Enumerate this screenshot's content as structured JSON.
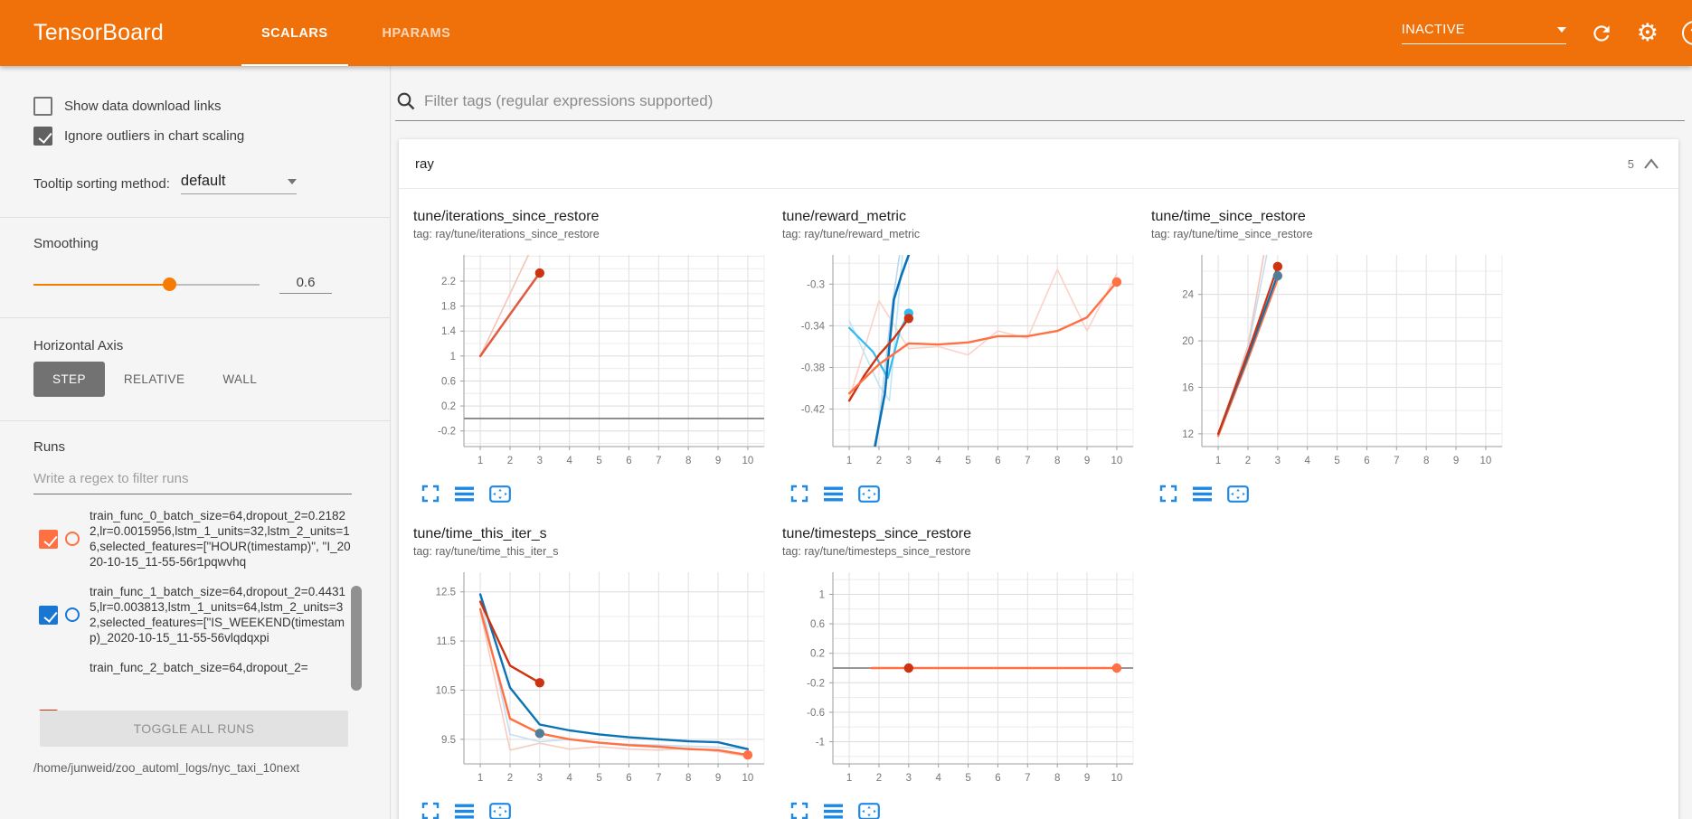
{
  "header": {
    "title": "TensorBoard",
    "tabs": [
      {
        "label": "SCALARS",
        "active": true
      },
      {
        "label": "HPARAMS",
        "active": false
      }
    ],
    "status": "INACTIVE",
    "help_label": "?"
  },
  "sidebar": {
    "checkboxes": [
      {
        "label": "Show data download links",
        "checked": false,
        "color": "#616161"
      },
      {
        "label": "Ignore outliers in chart scaling",
        "checked": true,
        "color": "#616161"
      }
    ],
    "tooltip_sorting": {
      "label": "Tooltip sorting method:",
      "value": "default"
    },
    "smoothing": {
      "label": "Smoothing",
      "value": "0.6",
      "percent": 60
    },
    "horizontal_axis": {
      "label": "Horizontal Axis",
      "options": [
        "STEP",
        "RELATIVE",
        "WALL"
      ],
      "selected": "STEP"
    },
    "runs": {
      "label": "Runs",
      "filter_placeholder": "Write a regex to filter runs",
      "items": [
        {
          "name": "train_func_0_batch_size=64,dropout_2=0.21822,lr=0.0015956,lstm_1_units=32,lstm_2_units=16,selected_features=[\"HOUR(timestamp)\", \"I_2020-10-15_11-55-56r1pqwvhq",
          "checked": true,
          "color": "#ff7043"
        },
        {
          "name": "train_func_1_batch_size=64,dropout_2=0.44315,lr=0.003813,lstm_1_units=64,lstm_2_units=32,selected_features=[\"IS_WEEKEND(timestamp)_2020-10-15_11-55-56vlqdqxpi",
          "checked": true,
          "color": "#1976d2"
        },
        {
          "name": "train_func_2_batch_size=64,dropout_2=",
          "checked": true,
          "color": "#cc3311"
        }
      ],
      "toggle_all_label": "TOGGLE ALL RUNS",
      "log_path": "/home/junweid/zoo_automl_logs/nyc_taxi_10next"
    }
  },
  "main": {
    "filter_placeholder": "Filter tags (regular expressions supported)",
    "section": {
      "name": "ray",
      "count": "5"
    }
  },
  "colors": {
    "header_bg": "#f0710a",
    "accent_orange": "#f57c00",
    "chart_icon_blue": "#1e88e5",
    "run_orange": "#ff7043",
    "run_blue": "#0b72b5",
    "run_red": "#cc3311",
    "run_cyan": "#33bbee"
  },
  "chart_data": [
    {
      "type": "line",
      "title": "tune/iterations_since_restore",
      "tag": "tag: ray/tune/iterations_since_restore",
      "xlabel": "step",
      "x_ticks": [
        1,
        2,
        3,
        4,
        5,
        6,
        7,
        8,
        9,
        10
      ],
      "y_ticks": [
        2.2,
        1.8,
        1.4,
        1,
        0.6,
        0.2,
        -0.2
      ],
      "x_range": [
        0.45,
        10.55
      ],
      "y_range": [
        -0.45,
        2.62
      ],
      "zero_line": true,
      "series": [
        {
          "name": "train_func_0 (raw)",
          "color": "#f6c3b5",
          "width": 1.6,
          "points": [
            [
              1,
              1
            ],
            [
              2,
              2
            ],
            [
              3,
              3
            ]
          ]
        },
        {
          "name": "train_func_0 (smoothed 0.6)",
          "color": "#e05b41",
          "width": 2.5,
          "points": [
            [
              1,
              1
            ],
            [
              2,
              1.67
            ],
            [
              3,
              2.33
            ]
          ]
        }
      ],
      "dots": [
        [
          3,
          2.33,
          "#cc3311"
        ]
      ]
    },
    {
      "type": "line",
      "title": "tune/reward_metric",
      "tag": "tag: ray/tune/reward_metric",
      "xlabel": "step",
      "x_ticks": [
        1,
        2,
        3,
        4,
        5,
        6,
        7,
        8,
        9,
        10
      ],
      "y_ticks": [
        -0.3,
        -0.34,
        -0.38,
        -0.42
      ],
      "x_range": [
        0.45,
        10.55
      ],
      "y_range": [
        -0.456,
        -0.272
      ],
      "zero_line": false,
      "series": [
        {
          "name": "train_func_0 (raw)",
          "color": "#fbd2c8",
          "width": 1.6,
          "points": [
            [
              1,
              -0.41
            ],
            [
              2,
              -0.316
            ],
            [
              3,
              -0.362
            ],
            [
              4,
              -0.36
            ],
            [
              5,
              -0.368
            ],
            [
              6,
              -0.345
            ],
            [
              7,
              -0.352
            ],
            [
              8,
              -0.286
            ],
            [
              9,
              -0.345
            ],
            [
              10,
              -0.29
            ]
          ]
        },
        {
          "name": "train_func_3 (raw)",
          "color": "#bfe6f5",
          "width": 1.6,
          "points": [
            [
              1,
              -0.335
            ],
            [
              2,
              -0.397
            ],
            [
              2.35,
              -0.412
            ],
            [
              2.8,
              -0.27
            ]
          ]
        },
        {
          "name": "train_func_1 (raw)",
          "color": "#b9d7ee",
          "width": 1.6,
          "points": [
            [
              1.9,
              -0.458
            ],
            [
              2.4,
              -0.33
            ],
            [
              2.7,
              -0.27
            ]
          ]
        },
        {
          "name": "train_func_3 (smoothed)",
          "color": "#33bbee",
          "width": 2.2,
          "points": [
            [
              1,
              -0.342
            ],
            [
              1.8,
              -0.365
            ],
            [
              2.3,
              -0.39
            ],
            [
              2.7,
              -0.345
            ],
            [
              3,
              -0.328
            ]
          ]
        },
        {
          "name": "train_func_1 (smoothed)",
          "color": "#0b72b5",
          "width": 2.6,
          "points": [
            [
              1.85,
              -0.458
            ],
            [
              2.2,
              -0.405
            ],
            [
              2.5,
              -0.315
            ],
            [
              2.75,
              -0.292
            ],
            [
              3.05,
              -0.268
            ]
          ]
        },
        {
          "name": "train_func_2 (smoothed)",
          "color": "#cc3311",
          "width": 2.4,
          "points": [
            [
              1,
              -0.412
            ],
            [
              1.5,
              -0.388
            ],
            [
              2,
              -0.368
            ],
            [
              2.5,
              -0.352
            ],
            [
              3,
              -0.333
            ]
          ]
        },
        {
          "name": "train_func_0 (smoothed)",
          "color": "#ff7043",
          "width": 2.4,
          "points": [
            [
              1,
              -0.405
            ],
            [
              2,
              -0.377
            ],
            [
              3,
              -0.357
            ],
            [
              4,
              -0.358
            ],
            [
              5,
              -0.356
            ],
            [
              6,
              -0.35
            ],
            [
              7,
              -0.35
            ],
            [
              8,
              -0.345
            ],
            [
              9,
              -0.332
            ],
            [
              10,
              -0.298
            ]
          ]
        }
      ],
      "dots": [
        [
          3,
          -0.328,
          "#33bbee"
        ],
        [
          3,
          -0.333,
          "#cc3311"
        ],
        [
          10,
          -0.298,
          "#ff7043"
        ]
      ]
    },
    {
      "type": "line",
      "title": "tune/time_since_restore",
      "tag": "tag: ray/tune/time_since_restore",
      "xlabel": "step",
      "x_ticks": [
        1,
        2,
        3,
        4,
        5,
        6,
        7,
        8,
        9,
        10
      ],
      "y_ticks": [
        24,
        20,
        16,
        12
      ],
      "x_range": [
        0.45,
        10.55
      ],
      "y_range": [
        10.9,
        27.4
      ],
      "zero_line": false,
      "series": [
        {
          "name": "train_func_0 (raw)",
          "color": "#f6c3b5",
          "width": 1.6,
          "points": [
            [
              1,
              11.8
            ],
            [
              2,
              19.6
            ],
            [
              2.55,
              27.6
            ]
          ]
        },
        {
          "name": "train_func_1 (raw)",
          "color": "#c3def2",
          "width": 1.6,
          "points": [
            [
              1,
              12
            ],
            [
              2,
              19.3
            ],
            [
              2.65,
              27.6
            ]
          ]
        },
        {
          "name": "train_func_0 (smoothed)",
          "color": "#ff7043",
          "width": 2.2,
          "points": [
            [
              1,
              11.8
            ],
            [
              2,
              18.4
            ],
            [
              3,
              25.3
            ]
          ]
        },
        {
          "name": "train_func_1 (smoothed)",
          "color": "#0b72b5",
          "width": 2.2,
          "points": [
            [
              1,
              12
            ],
            [
              2,
              18.7
            ],
            [
              3,
              25.7
            ]
          ]
        },
        {
          "name": "train_func_2 (smoothed)",
          "color": "#cc3311",
          "width": 2.2,
          "points": [
            [
              1,
              12
            ],
            [
              2,
              19
            ],
            [
              3,
              26.4
            ]
          ]
        }
      ],
      "dots": [
        [
          3,
          26.4,
          "#cc3311"
        ],
        [
          3,
          25.6,
          "#527d96"
        ]
      ]
    },
    {
      "type": "line",
      "title": "tune/time_this_iter_s",
      "tag": "tag: ray/tune/time_this_iter_s",
      "xlabel": "step",
      "x_ticks": [
        1,
        2,
        3,
        4,
        5,
        6,
        7,
        8,
        9,
        10
      ],
      "y_ticks": [
        12.5,
        11.5,
        10.5,
        9.5
      ],
      "x_range": [
        0.45,
        10.55
      ],
      "y_range": [
        9.0,
        12.9
      ],
      "zero_line": false,
      "series": [
        {
          "name": "train_func_0 (raw)",
          "color": "#f8cdc1",
          "width": 1.6,
          "points": [
            [
              1,
              12.1
            ],
            [
              2,
              9.28
            ],
            [
              3,
              9.42
            ],
            [
              4,
              9.3
            ],
            [
              5,
              9.35
            ],
            [
              6,
              9.3
            ],
            [
              7,
              9.28
            ],
            [
              8,
              9.32
            ],
            [
              9,
              9.25
            ],
            [
              10,
              9.15
            ]
          ]
        },
        {
          "name": "train_func_1 (raw)",
          "color": "#c3def2",
          "width": 1.6,
          "points": [
            [
              1,
              12.4
            ],
            [
              2,
              9.6
            ],
            [
              3,
              9.45
            ],
            [
              4,
              9.5
            ],
            [
              5,
              9.42
            ],
            [
              6,
              9.4
            ],
            [
              7,
              9.38
            ],
            [
              8,
              9.36
            ],
            [
              9,
              9.34
            ],
            [
              10,
              9.3
            ]
          ]
        },
        {
          "name": "train_func_1 (smoothed)",
          "color": "#0b72b5",
          "width": 2.4,
          "points": [
            [
              1,
              12.45
            ],
            [
              2,
              10.55
            ],
            [
              3,
              9.8
            ],
            [
              4,
              9.68
            ],
            [
              5,
              9.6
            ],
            [
              6,
              9.54
            ],
            [
              7,
              9.5
            ],
            [
              8,
              9.46
            ],
            [
              9,
              9.44
            ],
            [
              10,
              9.3
            ]
          ]
        },
        {
          "name": "train_func_0 (smoothed)",
          "color": "#ff7043",
          "width": 2.4,
          "points": [
            [
              1,
              12.15
            ],
            [
              2,
              9.92
            ],
            [
              3,
              9.62
            ],
            [
              4,
              9.5
            ],
            [
              5,
              9.43
            ],
            [
              6,
              9.38
            ],
            [
              7,
              9.35
            ],
            [
              8,
              9.3
            ],
            [
              9,
              9.28
            ],
            [
              10,
              9.18
            ]
          ]
        },
        {
          "name": "train_func_2 (smoothed)",
          "color": "#cc3311",
          "width": 2.4,
          "points": [
            [
              1,
              12.3
            ],
            [
              2,
              11.0
            ],
            [
              3,
              10.65
            ]
          ]
        }
      ],
      "dots": [
        [
          3,
          10.65,
          "#cc3311"
        ],
        [
          3,
          9.62,
          "#527d96"
        ],
        [
          10,
          9.18,
          "#ff7043"
        ]
      ]
    },
    {
      "type": "line",
      "title": "tune/timesteps_since_restore",
      "tag": "tag: ray/tune/timesteps_since_restore",
      "xlabel": "step",
      "x_ticks": [
        1,
        2,
        3,
        4,
        5,
        6,
        7,
        8,
        9,
        10
      ],
      "y_ticks": [
        1,
        0.6,
        0.2,
        -0.2,
        -0.6,
        -1
      ],
      "x_range": [
        0.45,
        10.55
      ],
      "y_range": [
        -1.3,
        1.3
      ],
      "zero_line": true,
      "series": [
        {
          "name": "train_func_0 (smoothed)",
          "color": "#ff7043",
          "width": 2.6,
          "points": [
            [
              1.75,
              0
            ],
            [
              10,
              0
            ]
          ]
        }
      ],
      "dots": [
        [
          3,
          0,
          "#cc3311"
        ],
        [
          10,
          0,
          "#ff7043"
        ]
      ]
    }
  ]
}
